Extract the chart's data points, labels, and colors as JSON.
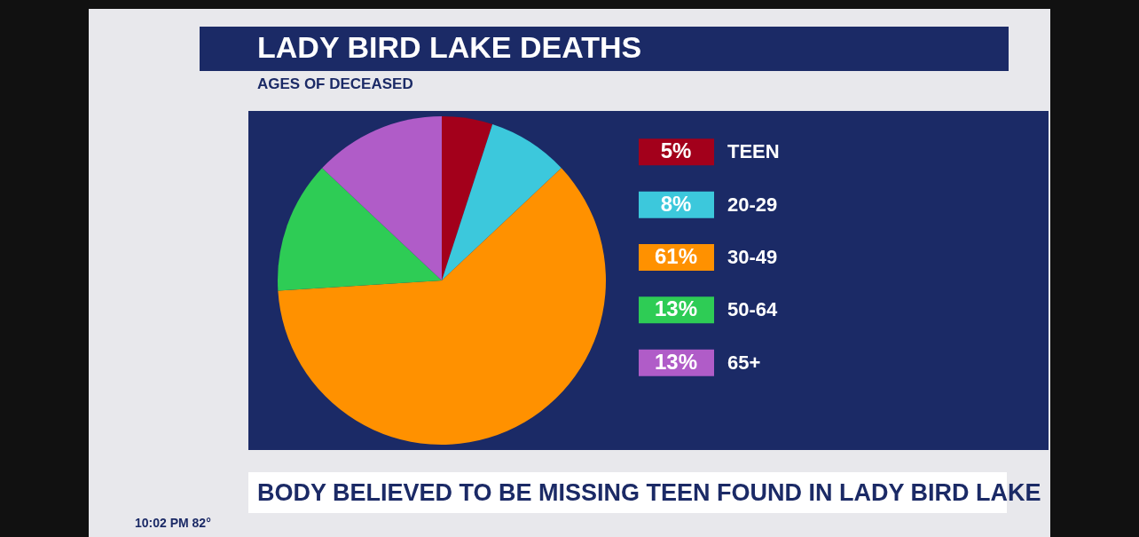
{
  "chart_data": {
    "type": "pie",
    "title": "LADY BIRD LAKE DEATHS",
    "subtitle": "AGES OF DECEASED",
    "categories": [
      "TEEN",
      "20-29",
      "30-49",
      "50-64",
      "65+"
    ],
    "values": [
      5,
      8,
      61,
      13,
      13
    ],
    "value_labels": [
      "5%",
      "8%",
      "61%",
      "13%",
      "13%"
    ],
    "colors": [
      "#a3001b",
      "#3cc8dc",
      "#ff9100",
      "#2ecc55",
      "#b05cc8"
    ],
    "data_labels": true,
    "legend": "right",
    "annotations": [
      "BODY BELIEVED TO BE MISSING TEEN FOUND IN LADY BIRD LAKE",
      "10:02 PM 82°"
    ]
  }
}
